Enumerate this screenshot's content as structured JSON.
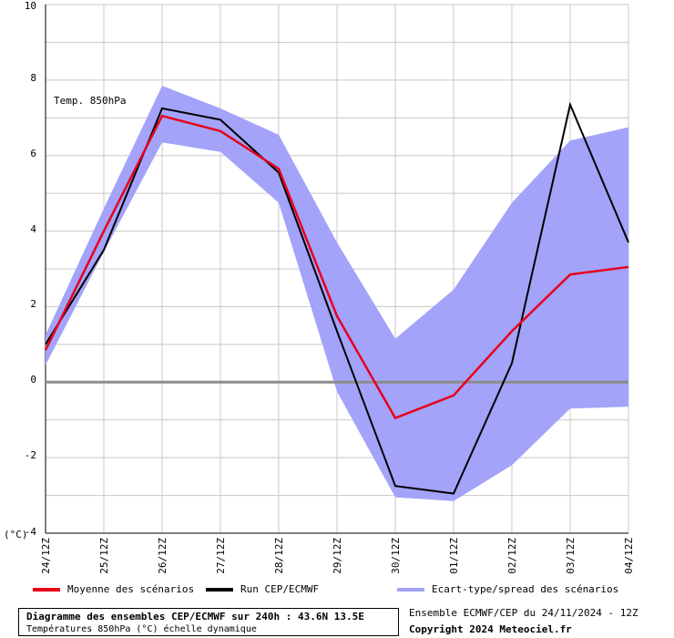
{
  "chart_data": {
    "type": "line",
    "annotation": "Temp. 850hPa",
    "unit_label": "(°C)",
    "x": [
      "24/12Z",
      "25/12Z",
      "26/12Z",
      "27/12Z",
      "28/12Z",
      "29/12Z",
      "30/12Z",
      "01/12Z",
      "02/12Z",
      "03/12Z",
      "04/12Z"
    ],
    "ylim": [
      -4,
      10
    ],
    "yticks": [
      -4,
      -2,
      0,
      2,
      4,
      6,
      8,
      10
    ],
    "grid": true,
    "series": [
      {
        "name": "Moyenne des scénarios",
        "color": "#e8001a",
        "values": [
          0.85,
          4.0,
          7.05,
          6.65,
          5.65,
          1.75,
          -0.95,
          -0.35,
          1.35,
          2.85,
          3.05
        ]
      },
      {
        "name": "Run CEP/ECMWF",
        "color": "#000000",
        "values": [
          1.0,
          3.5,
          7.25,
          6.95,
          5.55,
          1.35,
          -2.75,
          -2.95,
          0.5,
          7.35,
          3.7
        ]
      }
    ],
    "band": {
      "name": "Ecart-type/spread des scénarios",
      "color": "#a3a3fa",
      "upper": [
        1.25,
        4.6,
        7.85,
        7.25,
        6.55,
        3.7,
        1.15,
        2.45,
        4.75,
        6.4,
        6.75
      ],
      "lower": [
        0.45,
        3.45,
        6.35,
        6.1,
        4.75,
        -0.25,
        -3.05,
        -3.15,
        -2.2,
        -0.7,
        -0.65
      ]
    }
  },
  "footer": {
    "title": "Diagramme des ensembles CEP/ECMWF sur 240h : 43.6N 13.5E",
    "subtitle": "Températures 850hPa (°C) échelle dynamique",
    "run_info": "Ensemble ECMWF/CEP du 24/11/2024 - 12Z",
    "copyright": "Copyright 2024 Meteociel.fr"
  }
}
